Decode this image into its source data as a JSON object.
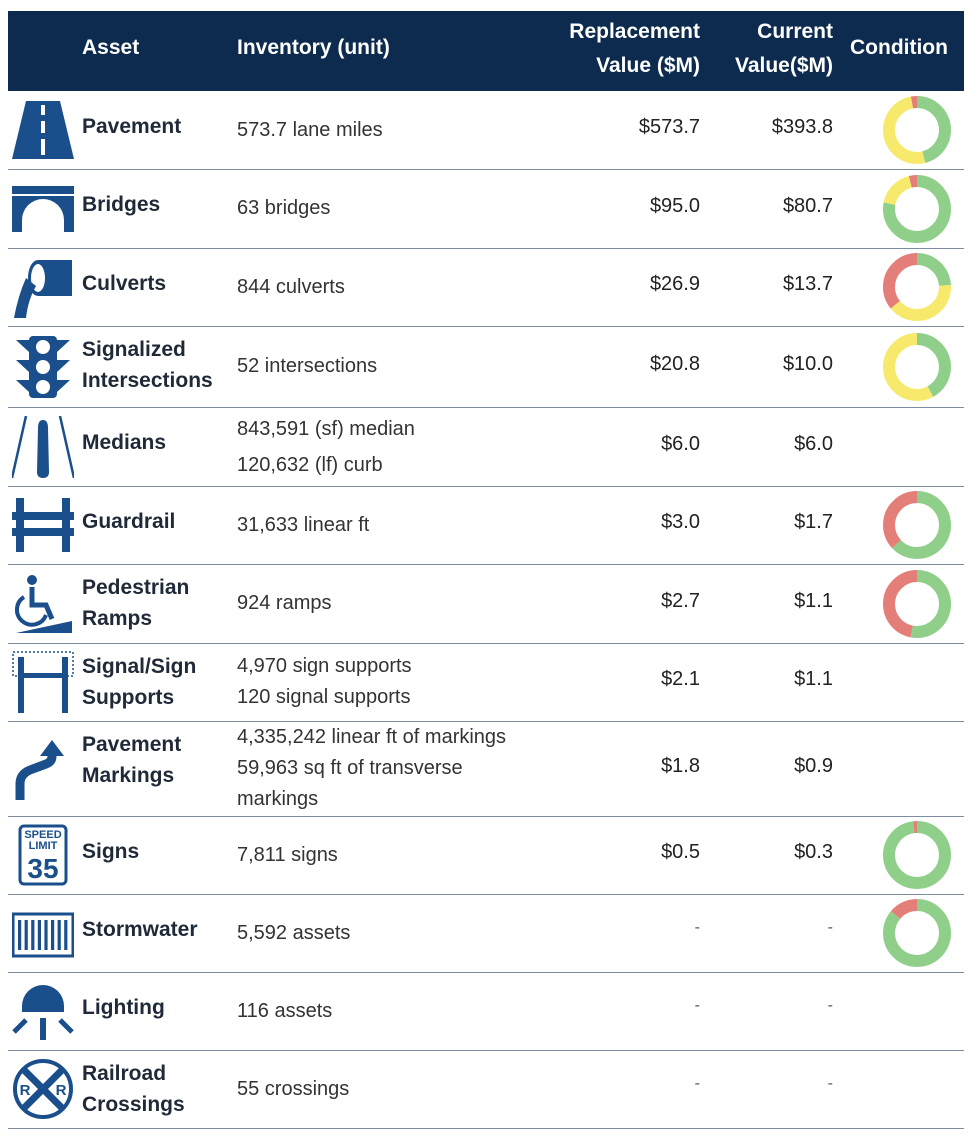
{
  "header": {
    "asset": "Asset",
    "inventory": "Inventory (unit)",
    "replacement_line1": "Replacement",
    "replacement_line2": "Value ($M)",
    "current_line1": "Current",
    "current_line2": "Value($M)",
    "condition": "Condition"
  },
  "colors": {
    "header_bg": "#0d2b4f",
    "icon": "#1a4f8b",
    "good": "#8fcf8a",
    "fair": "#f7e96c",
    "poor": "#e47e78"
  },
  "rows": [
    {
      "name": "Pavement",
      "icon": "road-icon",
      "inventory": [
        "573.7 lane miles"
      ],
      "replacement": "$573.7",
      "current": "$393.8",
      "condition": {
        "good": 0.46,
        "fair": 0.51,
        "poor": 0.03
      }
    },
    {
      "name": "Bridges",
      "icon": "bridge-icon",
      "inventory": [
        "63 bridges"
      ],
      "replacement": "$95.0",
      "current": "$80.7",
      "condition": {
        "good": 0.78,
        "fair": 0.18,
        "poor": 0.04
      }
    },
    {
      "name": "Culverts",
      "icon": "culvert-icon",
      "inventory": [
        "844 culverts"
      ],
      "replacement": "$26.9",
      "current": "$13.7",
      "condition": {
        "good": 0.24,
        "fair": 0.4,
        "poor": 0.36
      }
    },
    {
      "name": "Signalized Intersections",
      "icon": "traffic-light-icon",
      "inventory": [
        "52 intersections"
      ],
      "replacement": "$20.8",
      "current": "$10.0",
      "condition": {
        "good": 0.42,
        "fair": 0.58,
        "poor": 0
      }
    },
    {
      "name": "Medians",
      "icon": "median-icon",
      "inventory": [
        "843,591 (sf) median",
        "120,632 (lf) curb"
      ],
      "replacement": "$6.0",
      "current": "$6.0",
      "condition": null
    },
    {
      "name": "Guardrail",
      "icon": "guardrail-icon",
      "inventory": [
        "31,633 linear ft"
      ],
      "replacement": "$3.0",
      "current": "$1.7",
      "condition": {
        "good": 0.63,
        "fair": 0,
        "poor": 0.37
      }
    },
    {
      "name": "Pedestrian Ramps",
      "icon": "wheelchair-ramp-icon",
      "inventory": [
        "924 ramps"
      ],
      "replacement": "$2.7",
      "current": "$1.1",
      "condition": {
        "good": 0.53,
        "fair": 0,
        "poor": 0.47
      }
    },
    {
      "name": "Signal/Sign Supports",
      "icon": "sign-support-icon",
      "inventory": [
        "4,970 sign supports",
        "120 signal supports"
      ],
      "replacement": "$2.1",
      "current": "$1.1",
      "condition": null
    },
    {
      "name": "Pavement Markings",
      "icon": "turn-arrow-icon",
      "inventory": [
        "4,335,242 linear ft of markings",
        "59,963 sq ft of transverse",
        "markings"
      ],
      "replacement": "$1.8",
      "current": "$0.9",
      "condition": null
    },
    {
      "name": "Signs",
      "icon": "speed-limit-sign-icon",
      "inventory": [
        "7,811 signs"
      ],
      "replacement": "$0.5",
      "current": "$0.3",
      "condition": {
        "good": 0.98,
        "fair": 0,
        "poor": 0.02
      }
    },
    {
      "name": "Stormwater",
      "icon": "storm-grate-icon",
      "inventory": [
        "5,592 assets"
      ],
      "replacement": "-",
      "current": "-",
      "condition": {
        "good": 0.86,
        "fair": 0,
        "poor": 0.14
      }
    },
    {
      "name": "Lighting",
      "icon": "street-light-icon",
      "inventory": [
        "116 assets"
      ],
      "replacement": "-",
      "current": "-",
      "condition": null
    },
    {
      "name": "Railroad Crossings",
      "icon": "railroad-crossing-icon",
      "inventory": [
        "55 crossings"
      ],
      "replacement": "-",
      "current": "-",
      "condition": null
    }
  ],
  "sign_icon_text": {
    "line1": "SPEED",
    "line2": "LIMIT",
    "line3": "35"
  },
  "rr_icon_text": {
    "left": "R",
    "right": "R"
  }
}
